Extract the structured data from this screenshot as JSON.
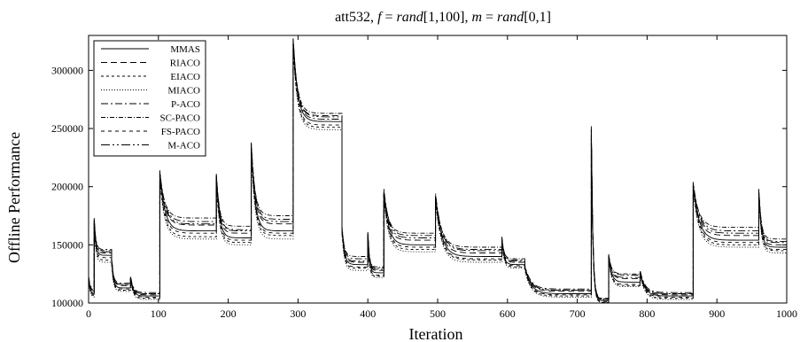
{
  "chart_data": {
    "type": "line",
    "title": "att532, f = rand[1,100], m = rand[0,1]",
    "title_parts": {
      "prefix": "att532, ",
      "f_symbol": "f",
      "f_eq": " = ",
      "f_rand": "rand",
      "f_range": "[1,100], ",
      "m_symbol": "m",
      "m_eq": " = ",
      "m_rand": "rand",
      "m_range": "[0,1]"
    },
    "xlabel": "Iteration",
    "ylabel": "Offline Performance",
    "xlim": [
      0,
      1000
    ],
    "ylim": [
      100000,
      330000
    ],
    "xticks": [
      0,
      100,
      200,
      300,
      400,
      500,
      600,
      700,
      800,
      900,
      1000
    ],
    "yticks": [
      100000,
      150000,
      200000,
      250000,
      300000
    ],
    "grid": false,
    "legend_position": "top-left",
    "change_points": [
      0,
      8,
      33,
      60,
      102,
      183,
      233,
      293,
      363,
      400,
      423,
      497,
      592,
      625,
      720,
      745,
      790,
      866,
      960
    ],
    "series": [
      {
        "name": "MMAS",
        "dash": "",
        "peaks": [
          120000,
          172000,
          136000,
          121000,
          212000,
          210000,
          236000,
          327000,
          164000,
          160000,
          196000,
          192000,
          155000,
          131000,
          250000,
          141000,
          127000,
          202000,
          196000
        ],
        "ends": [
          108000,
          141000,
          113000,
          106000,
          162000,
          156000,
          162000,
          256000,
          133000,
          126000,
          150000,
          140000,
          133000,
          108000,
          102000,
          118000,
          106000,
          154000,
          148000
        ]
      },
      {
        "name": "RIACO",
        "dash": "7,4",
        "peaks": [
          122000,
          170000,
          138000,
          122000,
          210000,
          208000,
          234000,
          322000,
          162000,
          158000,
          194000,
          190000,
          154000,
          130000,
          246000,
          140000,
          126000,
          200000,
          194000
        ],
        "ends": [
          110000,
          143000,
          115000,
          107000,
          167000,
          160000,
          168000,
          261000,
          135000,
          128000,
          154000,
          143000,
          135000,
          110000,
          103000,
          121000,
          107000,
          158000,
          150000
        ]
      },
      {
        "name": "EIACO",
        "dash": "3,3",
        "peaks": [
          121000,
          168000,
          134000,
          120000,
          206000,
          204000,
          232000,
          320000,
          160000,
          157000,
          192000,
          188000,
          153000,
          129000,
          244000,
          139000,
          125000,
          198000,
          192000
        ],
        "ends": [
          106000,
          137000,
          111000,
          104000,
          157000,
          152000,
          158000,
          251000,
          130000,
          123000,
          146000,
          137000,
          131000,
          106000,
          100500,
          115000,
          104000,
          150000,
          145000
        ]
      },
      {
        "name": "MIACO",
        "dash": "1,2",
        "peaks": [
          120000,
          167000,
          133000,
          120000,
          204000,
          203000,
          230000,
          318000,
          159000,
          156000,
          190000,
          187000,
          152000,
          128000,
          242000,
          138000,
          124000,
          196000,
          190000
        ],
        "ends": [
          105000,
          135000,
          110000,
          103000,
          155000,
          150000,
          155000,
          249000,
          128000,
          122000,
          144000,
          135000,
          130000,
          105000,
          100300,
          114000,
          103000,
          148000,
          143000
        ]
      },
      {
        "name": "P-ACO",
        "dash": "8,3,2,3",
        "peaks": [
          123000,
          173000,
          139000,
          123000,
          214000,
          211000,
          238000,
          328000,
          166000,
          161000,
          198000,
          194000,
          157000,
          132000,
          252000,
          142000,
          128000,
          204000,
          198000
        ],
        "ends": [
          112000,
          146000,
          117000,
          109000,
          170000,
          163000,
          172000,
          258000,
          138000,
          130000,
          158000,
          146000,
          137000,
          112000,
          104000,
          124000,
          109000,
          162000,
          153000
        ]
      },
      {
        "name": "SC-PACO",
        "dash": "5,2,1,2",
        "peaks": [
          122000,
          171000,
          137000,
          122000,
          211000,
          209000,
          235000,
          324000,
          163000,
          159000,
          195000,
          191000,
          155000,
          130000,
          248000,
          140000,
          126000,
          201000,
          195000
        ],
        "ends": [
          111000,
          145000,
          116000,
          108000,
          173000,
          166000,
          175000,
          263000,
          140000,
          131000,
          160000,
          148000,
          138000,
          111000,
          103500,
          125000,
          108000,
          165000,
          155000
        ]
      },
      {
        "name": "FS-PACO",
        "dash": "4,4",
        "peaks": [
          121000,
          169000,
          135000,
          121000,
          208000,
          206000,
          233000,
          321000,
          161000,
          158000,
          193000,
          189000,
          154000,
          129000,
          245000,
          139000,
          125000,
          199000,
          193000
        ],
        "ends": [
          107000,
          139000,
          112000,
          105000,
          160000,
          154000,
          160000,
          253000,
          131000,
          124000,
          148000,
          138000,
          132000,
          107000,
          101000,
          116000,
          105000,
          152000,
          146000
        ]
      },
      {
        "name": "M-ACO",
        "dash": "10,3,2,3,2,3",
        "peaks": [
          122000,
          172000,
          138000,
          122000,
          213000,
          210000,
          237000,
          326000,
          165000,
          160000,
          197000,
          193000,
          156000,
          131000,
          250000,
          141000,
          127000,
          203000,
          197000
        ],
        "ends": [
          110000,
          144000,
          116000,
          108000,
          168000,
          162000,
          170000,
          260000,
          136000,
          129000,
          156000,
          145000,
          136000,
          111000,
          103000,
          122000,
          108000,
          160000,
          152000
        ]
      }
    ]
  }
}
